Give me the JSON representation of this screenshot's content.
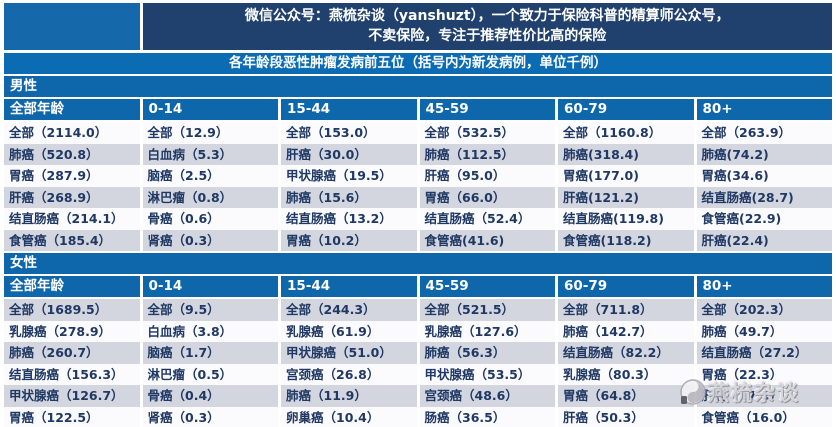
{
  "banner": {
    "line1": "微信公众号：燕梳杂谈（yanshuzt），一个致力于保险科普的精算师公众号，",
    "line2": "不卖保险，专注于推荐性价比高的保险"
  },
  "table_title": "各年龄段恶性肿瘤发病前五位（括号内为新发病例，单位千例）",
  "sections": [
    {
      "title": "男性",
      "columns": [
        "全部年龄",
        "0-14",
        "15-44",
        "45-59",
        "60-79",
        "80+"
      ],
      "rows": [
        [
          "全部（2114.0）",
          "全部（12.9）",
          "全部（153.0）",
          "全部（532.5）",
          "全部（1160.8）",
          "全部（263.9）"
        ],
        [
          "肺癌（520.8）",
          "白血病（5.3）",
          "肝癌（30.0）",
          "肺癌（112.5）",
          "肺癌(318.4)",
          "肺癌(74.2)"
        ],
        [
          "胃癌（287.9）",
          "脑癌（2.5）",
          "甲状腺癌（19.5）",
          "肝癌（95.0）",
          "胃癌(177.0)",
          "胃癌(34.6)"
        ],
        [
          "肝癌（268.9）",
          "淋巴瘤（0.8）",
          "肺癌（15.6）",
          "胃癌（66.0）",
          "肝癌(121.2)",
          "结直肠癌(28.7)"
        ],
        [
          "结直肠癌（214.1）",
          "骨癌（0.6）",
          "结直肠癌（13.2）",
          "结直肠癌（52.4）",
          "结直肠癌(119.8)",
          "食管癌(22.9)"
        ],
        [
          "食管癌（185.4）",
          "肾癌（0.3）",
          "胃癌（10.2）",
          "食管癌(41.6)",
          "食管癌(118.2)",
          "肝癌(22.4)"
        ]
      ]
    },
    {
      "title": "女性",
      "columns": [
        "全部年龄",
        "0-14",
        "15-44",
        "45-59",
        "60-79",
        "80+"
      ],
      "rows": [
        [
          "全部（1689.5）",
          "全部（9.5）",
          "全部（244.3）",
          "全部（521.5）",
          "全部（711.8）",
          "全部（202.3）"
        ],
        [
          "乳腺癌（278.9）",
          "白血病（3.8）",
          "乳腺癌（61.9）",
          "乳腺癌（127.6）",
          "肺癌（142.7）",
          "肺癌（49.7）"
        ],
        [
          "肺癌（260.7）",
          "脑癌（1.7）",
          "甲状腺癌（51.0）",
          "肺癌（56.3）",
          "结直肠癌（82.2）",
          "结直肠癌（27.2）"
        ],
        [
          "结直肠癌（156.3）",
          "淋巴瘤（0.5）",
          "宫颈癌（26.8）",
          "甲状腺癌（53.5）",
          "乳腺癌（80.3）",
          "胃癌（22.3）"
        ],
        [
          "甲状腺癌（126.7）",
          "骨癌（0.4）",
          "肺癌（11.9）",
          "宫颈癌（48.6）",
          "胃癌（64.8）",
          "肝癌（17.5）"
        ],
        [
          "胃癌（122.5）",
          "肾癌（0.3）",
          "卵巢癌（10.4）",
          "肠癌（36.5）",
          "肝癌（50.3）",
          "食管癌（16.0）"
        ]
      ]
    }
  ],
  "watermark": {
    "text": "燕梳杂谈"
  },
  "colors": {
    "banner_navy": "#20406E",
    "header_blue": "#0E67AB",
    "subtitle_blue": "#0B6CB4",
    "stripe_gray": "#D3D6DE",
    "stripe_white": "#FBFBFD",
    "cell_text": "#1F3864",
    "watermark_gray": "#D7D6DC"
  }
}
